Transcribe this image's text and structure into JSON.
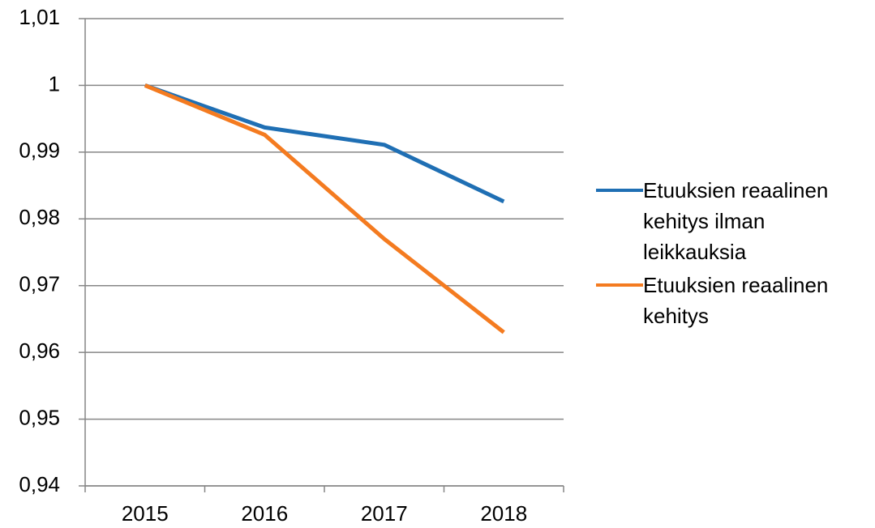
{
  "chart_data": {
    "type": "line",
    "categories": [
      "2015",
      "2016",
      "2017",
      "2018"
    ],
    "series": [
      {
        "name": "Etuuksien reaalinen kehitys ilman leikkauksia",
        "color": "#1f6fb4",
        "values": [
          1.0,
          0.9937,
          0.9911,
          0.9826
        ]
      },
      {
        "name": "Etuuksien reaalinen kehitys",
        "color": "#f47b20",
        "values": [
          1.0,
          0.9926,
          0.977,
          0.963
        ]
      }
    ],
    "ylim": [
      0.94,
      1.01
    ],
    "yticks": [
      {
        "value": 0.94,
        "label": "0,94"
      },
      {
        "value": 0.95,
        "label": "0,95"
      },
      {
        "value": 0.96,
        "label": "0,96"
      },
      {
        "value": 0.97,
        "label": "0,97"
      },
      {
        "value": 0.98,
        "label": "0,98"
      },
      {
        "value": 0.99,
        "label": "0,99"
      },
      1,
      {
        "value": 1.01,
        "label": "1,01"
      }
    ],
    "grid": true,
    "legend": "right"
  }
}
